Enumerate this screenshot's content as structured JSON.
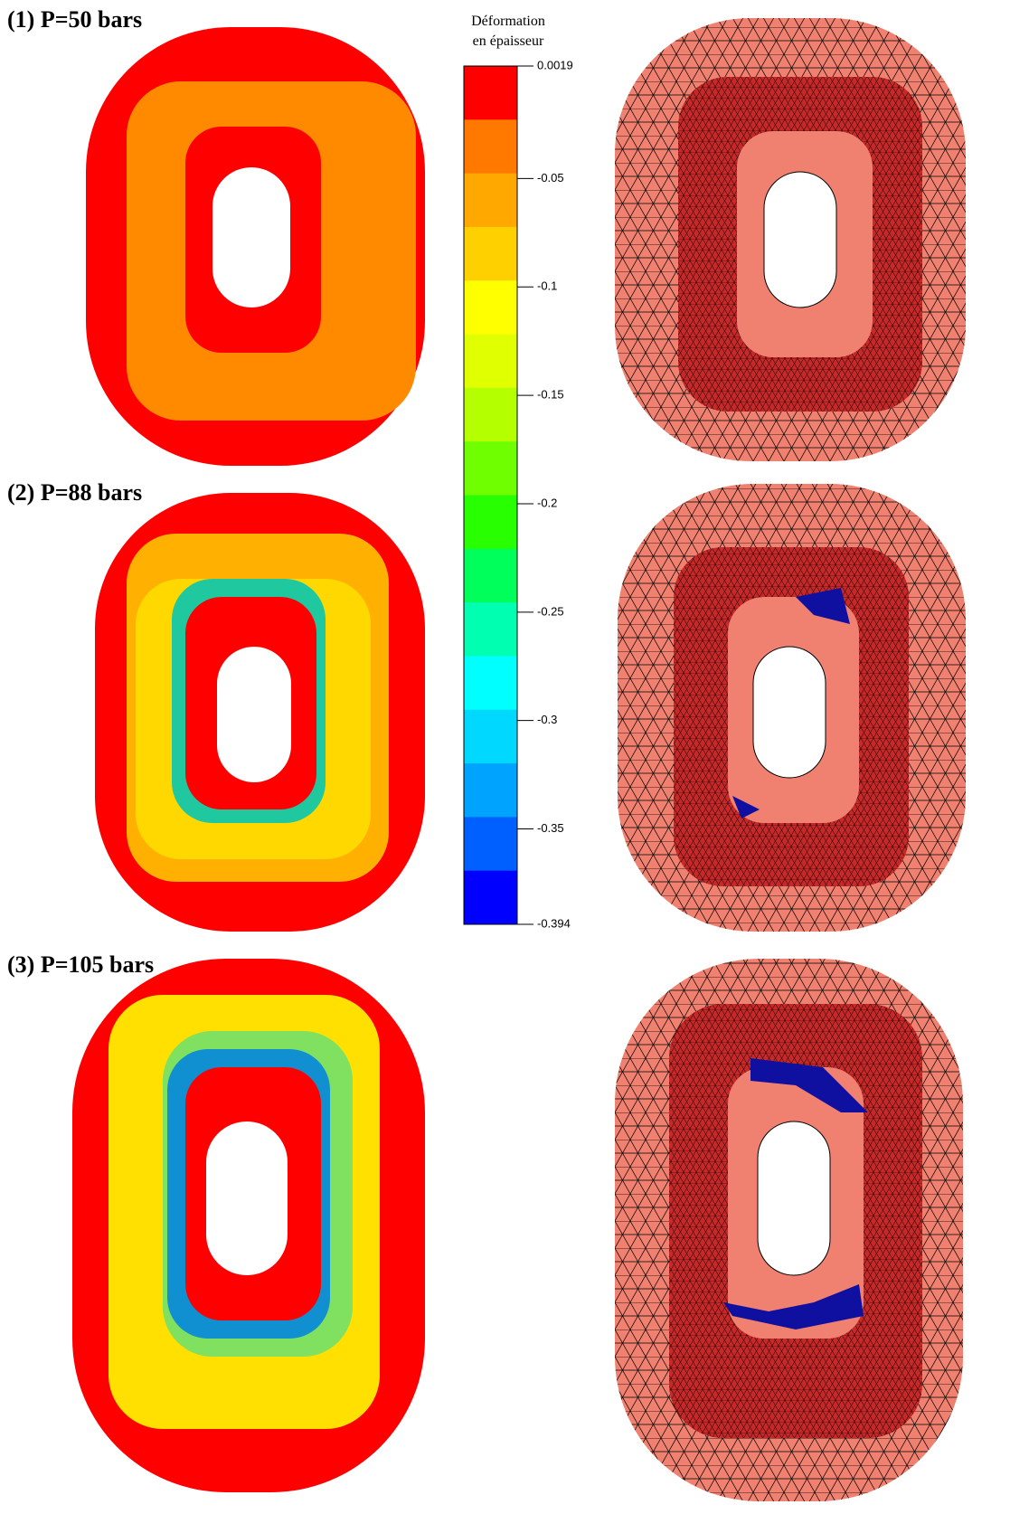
{
  "panels": [
    {
      "label": "(1) P=50 bars"
    },
    {
      "label": "(2) P=88 bars"
    },
    {
      "label": "(3) P=105 bars"
    }
  ],
  "chart_data": {
    "type": "colorbar",
    "title": [
      "Déformation",
      "en épaisseur"
    ],
    "ylim": [
      -0.394,
      0.0019
    ],
    "yticks": [
      0.0019,
      -0.05,
      -0.1,
      -0.15,
      -0.2,
      -0.25,
      -0.3,
      -0.35,
      -0.394
    ],
    "colors": [
      "#ff0000",
      "#ff7800",
      "#ffa800",
      "#ffd000",
      "#ffff00",
      "#e0ff00",
      "#b4ff00",
      "#70ff00",
      "#28ff00",
      "#00ff5a",
      "#00ffb0",
      "#00ffff",
      "#00d8ff",
      "#00a4ff",
      "#0060ff",
      "#0000ff"
    ]
  }
}
